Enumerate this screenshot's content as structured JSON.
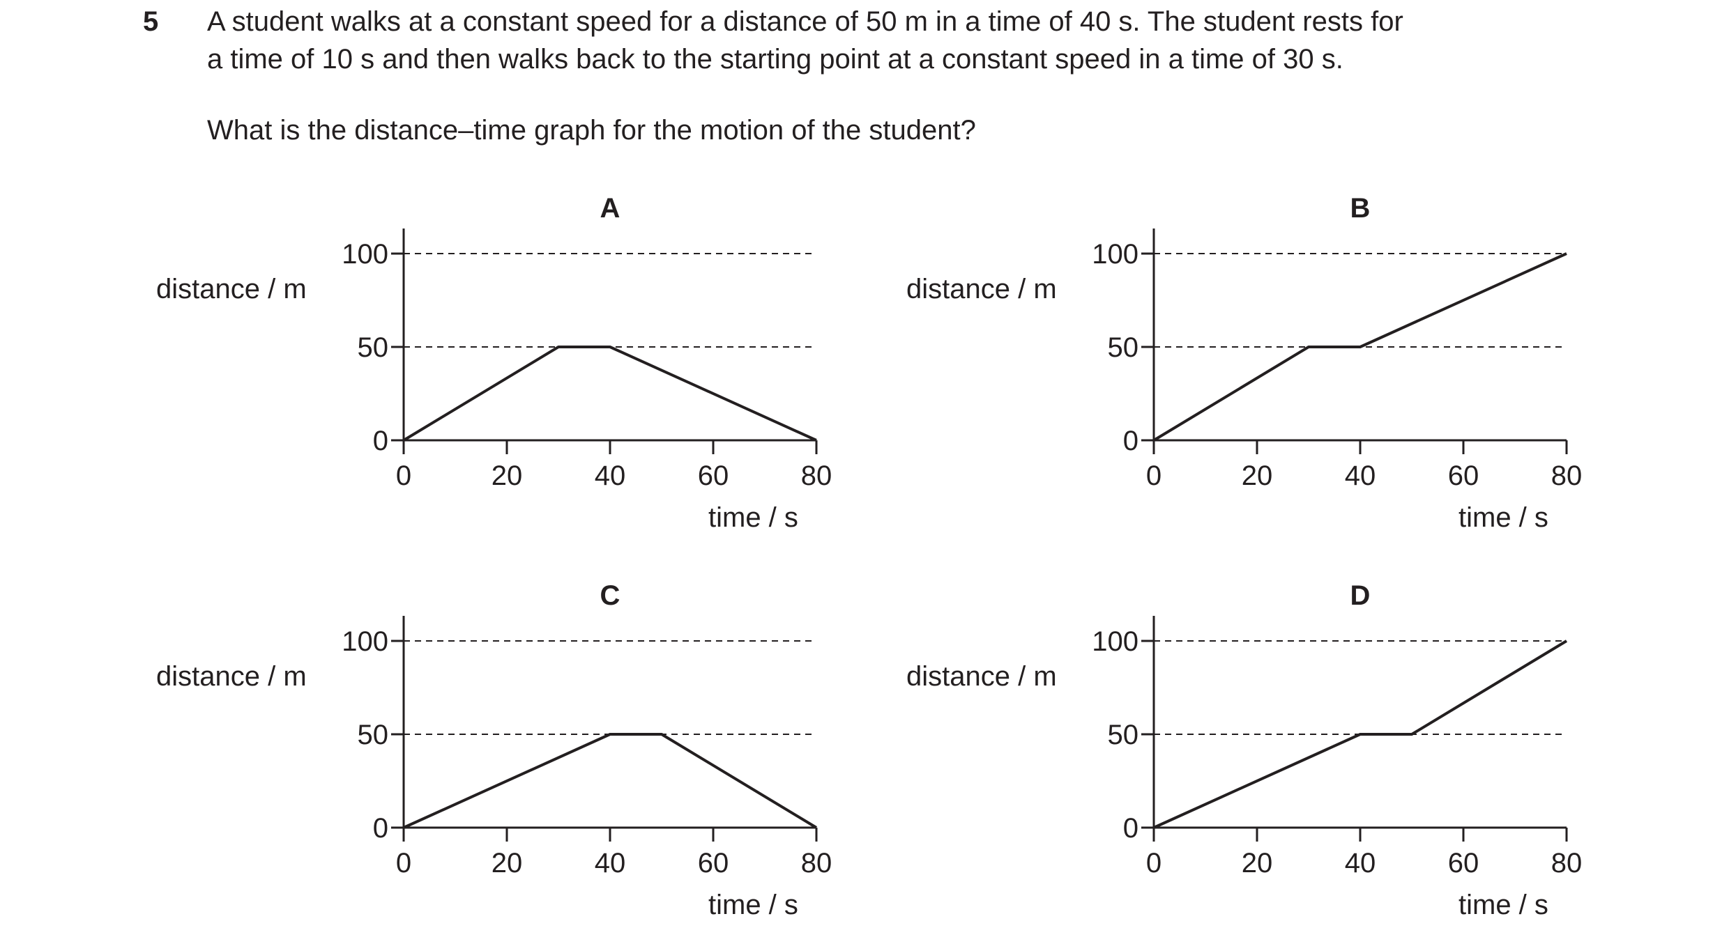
{
  "question": {
    "number": "5",
    "stem_line1": "A student walks at a constant speed for a distance of 50 m in a time of 40 s. The student rests for",
    "stem_line2": "a time of 10 s and then walks back to the starting point at a constant speed in a time of 30 s.",
    "prompt": "What is the distance–time graph for the motion of the student?"
  },
  "chart_data": [
    {
      "type": "line",
      "title": "A",
      "xlabel": "time / s",
      "ylabel": "distance / m",
      "xlim": [
        0,
        80
      ],
      "ylim": [
        0,
        100
      ],
      "x_ticks": [
        0,
        20,
        40,
        60,
        80
      ],
      "y_ticks": [
        0,
        50,
        100
      ],
      "dashed_gridlines_y": [
        50,
        100
      ],
      "series": [
        {
          "x": [
            0,
            30,
            40,
            80
          ],
          "y": [
            0,
            50,
            50,
            0
          ]
        }
      ]
    },
    {
      "type": "line",
      "title": "B",
      "xlabel": "time / s",
      "ylabel": "distance / m",
      "xlim": [
        0,
        80
      ],
      "ylim": [
        0,
        100
      ],
      "x_ticks": [
        0,
        20,
        40,
        60,
        80
      ],
      "y_ticks": [
        0,
        50,
        100
      ],
      "dashed_gridlines_y": [
        50,
        100
      ],
      "series": [
        {
          "x": [
            0,
            30,
            40,
            80
          ],
          "y": [
            0,
            50,
            50,
            100
          ]
        }
      ]
    },
    {
      "type": "line",
      "title": "C",
      "xlabel": "time / s",
      "ylabel": "distance / m",
      "xlim": [
        0,
        80
      ],
      "ylim": [
        0,
        100
      ],
      "x_ticks": [
        0,
        20,
        40,
        60,
        80
      ],
      "y_ticks": [
        0,
        50,
        100
      ],
      "dashed_gridlines_y": [
        50,
        100
      ],
      "series": [
        {
          "x": [
            0,
            40,
            50,
            80
          ],
          "y": [
            0,
            50,
            50,
            0
          ]
        }
      ]
    },
    {
      "type": "line",
      "title": "D",
      "xlabel": "time / s",
      "ylabel": "distance / m",
      "xlim": [
        0,
        80
      ],
      "ylim": [
        0,
        100
      ],
      "x_ticks": [
        0,
        20,
        40,
        60,
        80
      ],
      "y_ticks": [
        0,
        50,
        100
      ],
      "dashed_gridlines_y": [
        50,
        100
      ],
      "series": [
        {
          "x": [
            0,
            40,
            50,
            80
          ],
          "y": [
            0,
            50,
            50,
            100
          ]
        }
      ]
    }
  ]
}
